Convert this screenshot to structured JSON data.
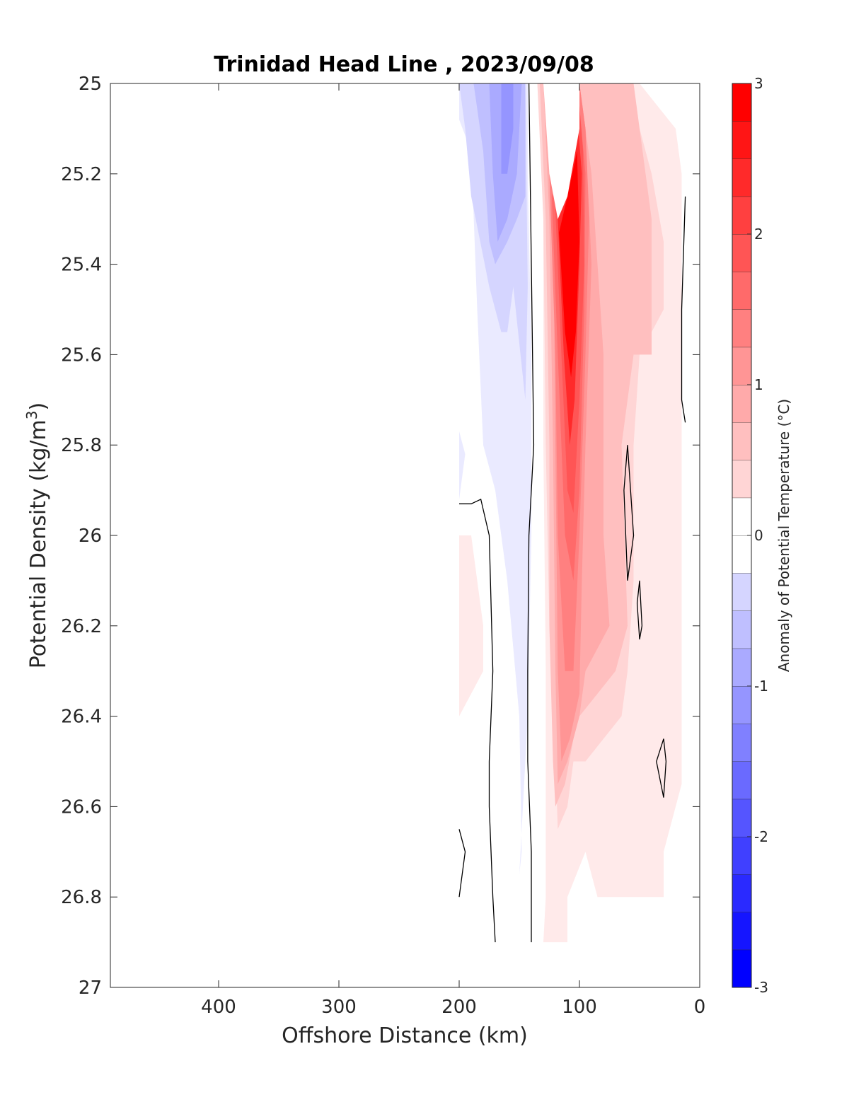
{
  "chart_data": {
    "type": "heatmap",
    "title": "Trinidad Head Line , 2023/09/08",
    "xlabel": "Offshore Distance (km)",
    "ylabel": "Potential Density (kg/m",
    "ylabel_sup": "3",
    "ylabel_close": ")",
    "xlim": [
      490,
      0
    ],
    "ylim": [
      25,
      27
    ],
    "xticks": [
      "400",
      "300",
      "200",
      "100",
      "0"
    ],
    "xtick_values": [
      400,
      300,
      200,
      100,
      0
    ],
    "yticks": [
      "25",
      "25.2",
      "25.4",
      "25.6",
      "25.8",
      "26",
      "26.2",
      "26.4",
      "26.6",
      "26.8",
      "27"
    ],
    "ytick_values": [
      25,
      25.2,
      25.4,
      25.6,
      25.8,
      26,
      26.2,
      26.4,
      26.6,
      26.8,
      27
    ],
    "colorbar": {
      "label": "Anomaly of Potential Temperature (°C)",
      "range": [
        -3,
        3
      ],
      "step": 0.25,
      "ticks": [
        "3",
        "2",
        "1",
        "0",
        "-1",
        "-2",
        "-3"
      ],
      "tick_values": [
        3,
        2,
        1,
        0,
        -1,
        -2,
        -3
      ],
      "color_negative": "#0000ff",
      "color_positive": "#ff0000"
    },
    "regions": [
      {
        "level": -0.25,
        "points": [
          [
            200,
            25.08
          ],
          [
            190,
            25.15
          ],
          [
            185,
            25.5
          ],
          [
            180,
            25.8
          ],
          [
            170,
            25.9
          ],
          [
            160,
            26.1
          ],
          [
            150,
            26.4
          ],
          [
            148,
            26.7
          ],
          [
            150,
            26.75
          ],
          [
            143,
            26.4
          ],
          [
            140,
            26.0
          ],
          [
            140,
            25.6
          ],
          [
            143,
            25.2
          ],
          [
            143,
            25.0
          ],
          [
            200,
            25.0
          ],
          [
            200,
            25.92
          ],
          [
            195,
            25.82
          ],
          [
            200,
            25.77
          ]
        ]
      },
      {
        "level": -0.5,
        "points": [
          [
            200,
            25.0
          ],
          [
            195,
            25.1
          ],
          [
            190,
            25.25
          ],
          [
            175,
            25.45
          ],
          [
            165,
            25.55
          ],
          [
            160,
            25.55
          ],
          [
            155,
            25.45
          ],
          [
            145,
            25.7
          ],
          [
            143,
            25.45
          ],
          [
            145,
            25.0
          ]
        ]
      },
      {
        "level": -0.75,
        "points": [
          [
            188,
            25.0
          ],
          [
            180,
            25.15
          ],
          [
            175,
            25.35
          ],
          [
            170,
            25.4
          ],
          [
            160,
            25.35
          ],
          [
            152,
            25.3
          ],
          [
            145,
            25.25
          ],
          [
            145,
            25.0
          ]
        ]
      },
      {
        "level": -1.0,
        "points": [
          [
            175,
            25.0
          ],
          [
            172,
            25.2
          ],
          [
            168,
            25.35
          ],
          [
            160,
            25.3
          ],
          [
            152,
            25.2
          ],
          [
            148,
            25.0
          ]
        ]
      },
      {
        "level": -1.25,
        "points": [
          [
            165,
            25.0
          ],
          [
            165,
            25.2
          ],
          [
            160,
            25.2
          ],
          [
            155,
            25.1
          ],
          [
            155,
            25.0
          ]
        ]
      },
      {
        "level": 0.25,
        "points": [
          [
            200,
            26.0
          ],
          [
            190,
            26.0
          ],
          [
            185,
            26.1
          ],
          [
            180,
            26.2
          ],
          [
            180,
            26.3
          ],
          [
            190,
            26.35
          ],
          [
            200,
            26.4
          ]
        ]
      },
      {
        "level": 0.25,
        "points": [
          [
            135,
            25.0
          ],
          [
            130,
            25.2
          ],
          [
            130,
            25.8
          ],
          [
            128,
            26.3
          ],
          [
            128,
            26.8
          ],
          [
            130,
            26.9
          ],
          [
            110,
            26.9
          ],
          [
            110,
            26.8
          ],
          [
            95,
            26.7
          ],
          [
            85,
            26.8
          ],
          [
            30,
            26.8
          ],
          [
            30,
            26.7
          ],
          [
            15,
            26.55
          ],
          [
            15,
            26.0
          ],
          [
            15,
            25.2
          ],
          [
            20,
            25.1
          ],
          [
            50,
            25.0
          ]
        ]
      },
      {
        "level": 0.5,
        "points": [
          [
            135,
            25.0
          ],
          [
            130,
            25.3
          ],
          [
            128,
            25.8
          ],
          [
            125,
            26.2
          ],
          [
            120,
            26.5
          ],
          [
            118,
            26.65
          ],
          [
            110,
            26.6
          ],
          [
            105,
            26.5
          ],
          [
            95,
            26.5
          ],
          [
            80,
            26.45
          ],
          [
            65,
            26.4
          ],
          [
            60,
            26.3
          ],
          [
            55,
            26.1
          ],
          [
            55,
            25.8
          ],
          [
            50,
            25.6
          ],
          [
            30,
            25.5
          ],
          [
            30,
            25.35
          ],
          [
            40,
            25.2
          ],
          [
            60,
            25.0
          ]
        ]
      },
      {
        "level": 0.75,
        "points": [
          [
            133,
            25.0
          ],
          [
            128,
            25.3
          ],
          [
            125,
            25.8
          ],
          [
            125,
            26.2
          ],
          [
            122,
            26.5
          ],
          [
            120,
            26.6
          ],
          [
            112,
            26.55
          ],
          [
            105,
            26.45
          ],
          [
            100,
            26.4
          ],
          [
            85,
            26.35
          ],
          [
            70,
            26.3
          ],
          [
            60,
            26.2
          ],
          [
            65,
            25.8
          ],
          [
            55,
            25.6
          ],
          [
            40,
            25.6
          ],
          [
            40,
            25.3
          ],
          [
            55,
            25.0
          ]
        ]
      },
      {
        "level": 1.0,
        "points": [
          [
            130,
            25.0
          ],
          [
            125,
            25.3
          ],
          [
            122,
            25.8
          ],
          [
            120,
            26.3
          ],
          [
            118,
            26.55
          ],
          [
            110,
            26.5
          ],
          [
            100,
            26.4
          ],
          [
            95,
            26.3
          ],
          [
            75,
            26.2
          ],
          [
            80,
            26.0
          ],
          [
            80,
            25.6
          ],
          [
            90,
            25.2
          ],
          [
            100,
            25.0
          ]
        ]
      },
      {
        "level": 1.25,
        "points": [
          [
            128,
            25.0
          ],
          [
            122,
            25.2
          ],
          [
            120,
            25.8
          ],
          [
            118,
            26.3
          ],
          [
            115,
            26.5
          ],
          [
            108,
            26.45
          ],
          [
            100,
            26.35
          ],
          [
            98,
            26.1
          ],
          [
            95,
            25.8
          ],
          [
            90,
            25.4
          ],
          [
            95,
            25.1
          ],
          [
            100,
            25.0
          ]
        ]
      },
      {
        "level": 1.5,
        "points": [
          [
            125,
            25.2
          ],
          [
            120,
            25.6
          ],
          [
            118,
            26.0
          ],
          [
            112,
            26.3
          ],
          [
            105,
            26.3
          ],
          [
            100,
            26.0
          ],
          [
            95,
            25.6
          ],
          [
            92,
            25.3
          ],
          [
            95,
            25.1
          ],
          [
            100,
            25.0
          ],
          [
            115,
            25.1
          ]
        ]
      },
      {
        "level": 1.75,
        "points": [
          [
            123,
            25.25
          ],
          [
            118,
            25.6
          ],
          [
            112,
            26.0
          ],
          [
            105,
            26.1
          ],
          [
            100,
            25.9
          ],
          [
            96,
            25.5
          ],
          [
            95,
            25.2
          ],
          [
            100,
            25.05
          ],
          [
            115,
            25.2
          ]
        ]
      },
      {
        "level": 2.0,
        "points": [
          [
            120,
            25.28
          ],
          [
            115,
            25.6
          ],
          [
            110,
            25.9
          ],
          [
            105,
            25.95
          ],
          [
            100,
            25.7
          ],
          [
            96,
            25.4
          ],
          [
            97,
            25.15
          ],
          [
            100,
            25.05
          ],
          [
            110,
            25.2
          ]
        ]
      },
      {
        "level": 2.5,
        "points": [
          [
            118,
            25.3
          ],
          [
            113,
            25.6
          ],
          [
            108,
            25.8
          ],
          [
            104,
            25.7
          ],
          [
            100,
            25.4
          ],
          [
            98,
            25.2
          ],
          [
            101,
            25.1
          ],
          [
            110,
            25.2
          ]
        ]
      },
      {
        "level": 3.0,
        "points": [
          [
            117,
            25.33
          ],
          [
            112,
            25.55
          ],
          [
            107,
            25.65
          ],
          [
            103,
            25.55
          ],
          [
            100,
            25.35
          ],
          [
            102,
            25.15
          ],
          [
            110,
            25.25
          ]
        ]
      },
      {
        "level": 0.0,
        "points": [
          [
            100,
            25.0
          ],
          [
            100,
            25.1
          ],
          [
            110,
            25.25
          ],
          [
            118,
            25.3
          ],
          [
            125,
            25.2
          ],
          [
            130,
            25.0
          ]
        ]
      }
    ],
    "contours": [
      [
        [
          142,
          25.0
        ],
        [
          140,
          25.4
        ],
        [
          138,
          25.8
        ],
        [
          140,
          25.9
        ],
        [
          142,
          26.0
        ],
        [
          143,
          26.3
        ],
        [
          143,
          26.5
        ],
        [
          140,
          26.7
        ],
        [
          140,
          26.9
        ]
      ],
      [
        [
          200,
          25.93
        ],
        [
          190,
          25.93
        ],
        [
          182,
          25.92
        ],
        [
          175,
          26.0
        ],
        [
          172,
          26.3
        ],
        [
          175,
          26.5
        ],
        [
          175,
          26.6
        ],
        [
          172,
          26.8
        ],
        [
          170,
          26.9
        ]
      ],
      [
        [
          200,
          26.65
        ],
        [
          195,
          26.7
        ],
        [
          200,
          26.8
        ]
      ],
      [
        [
          12,
          25.25
        ],
        [
          15,
          25.5
        ],
        [
          15,
          25.7
        ],
        [
          12,
          25.75
        ]
      ],
      [
        [
          60,
          25.8
        ],
        [
          55,
          26.0
        ],
        [
          60,
          26.1
        ],
        [
          63,
          25.9
        ],
        [
          60,
          25.8
        ]
      ],
      [
        [
          50,
          26.1
        ],
        [
          48,
          26.2
        ],
        [
          50,
          26.23
        ],
        [
          52,
          26.15
        ],
        [
          50,
          26.1
        ]
      ],
      [
        [
          30,
          26.45
        ],
        [
          36,
          26.5
        ],
        [
          30,
          26.58
        ],
        [
          28,
          26.5
        ],
        [
          30,
          26.45
        ]
      ]
    ]
  }
}
